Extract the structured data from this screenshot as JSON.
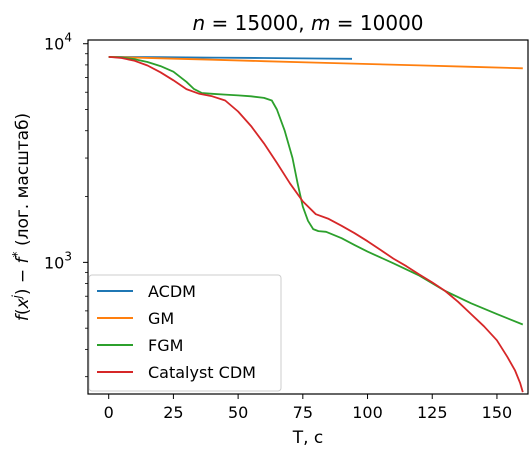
{
  "chart_data": {
    "type": "line",
    "title_prefix_n": "n",
    "title_eq1": " = 15000, ",
    "title_prefix_m": "m",
    "title_eq2": " = 10000",
    "xlabel": "T, c",
    "ylabel": "f(x^j) − f* (лог. масштаб)",
    "x_ticks": [
      0,
      25,
      50,
      75,
      100,
      125,
      150
    ],
    "xlim": [
      -8,
      162
    ],
    "y_scale": "log",
    "ylim": [
      250,
      10400
    ],
    "y_major_ticks": [
      {
        "value": 1000,
        "base": "10",
        "exp": "3"
      },
      {
        "value": 10000,
        "base": "10",
        "exp": "4"
      }
    ],
    "y_minor_ticks": [
      300,
      400,
      500,
      600,
      700,
      800,
      900,
      2000,
      3000,
      4000,
      5000,
      6000,
      7000,
      8000,
      9000
    ],
    "legend_position": "lower-left",
    "series": [
      {
        "name": "ACDM",
        "color": "#1f77b4",
        "points": [
          [
            0,
            8700
          ],
          [
            20,
            8680
          ],
          [
            40,
            8640
          ],
          [
            60,
            8600
          ],
          [
            80,
            8560
          ],
          [
            94,
            8530
          ]
        ]
      },
      {
        "name": "GM",
        "color": "#ff7f0e",
        "points": [
          [
            0,
            8700
          ],
          [
            20,
            8580
          ],
          [
            40,
            8450
          ],
          [
            60,
            8320
          ],
          [
            80,
            8200
          ],
          [
            100,
            8080
          ],
          [
            120,
            7960
          ],
          [
            140,
            7840
          ],
          [
            160,
            7720
          ]
        ]
      },
      {
        "name": "FGM",
        "color": "#2ca02c",
        "points": [
          [
            0,
            8700
          ],
          [
            5,
            8650
          ],
          [
            10,
            8500
          ],
          [
            15,
            8250
          ],
          [
            20,
            7900
          ],
          [
            25,
            7450
          ],
          [
            30,
            6700
          ],
          [
            33,
            6200
          ],
          [
            36,
            5950
          ],
          [
            40,
            5900
          ],
          [
            45,
            5850
          ],
          [
            50,
            5800
          ],
          [
            55,
            5750
          ],
          [
            60,
            5650
          ],
          [
            63,
            5500
          ],
          [
            65,
            5000
          ],
          [
            68,
            4000
          ],
          [
            71,
            3000
          ],
          [
            73,
            2300
          ],
          [
            75,
            1800
          ],
          [
            77,
            1550
          ],
          [
            79,
            1420
          ],
          [
            81,
            1390
          ],
          [
            84,
            1380
          ],
          [
            90,
            1290
          ],
          [
            95,
            1200
          ],
          [
            100,
            1120
          ],
          [
            110,
            990
          ],
          [
            120,
            870
          ],
          [
            130,
            740
          ],
          [
            140,
            650
          ],
          [
            150,
            580
          ],
          [
            160,
            520
          ]
        ]
      },
      {
        "name": "Catalyst CDM",
        "color": "#d62728",
        "points": [
          [
            0,
            8700
          ],
          [
            5,
            8600
          ],
          [
            10,
            8350
          ],
          [
            15,
            7950
          ],
          [
            20,
            7400
          ],
          [
            25,
            6800
          ],
          [
            30,
            6200
          ],
          [
            35,
            5900
          ],
          [
            40,
            5750
          ],
          [
            45,
            5500
          ],
          [
            50,
            4900
          ],
          [
            55,
            4200
          ],
          [
            60,
            3500
          ],
          [
            65,
            2850
          ],
          [
            70,
            2300
          ],
          [
            75,
            1900
          ],
          [
            80,
            1660
          ],
          [
            85,
            1580
          ],
          [
            90,
            1470
          ],
          [
            95,
            1360
          ],
          [
            100,
            1250
          ],
          [
            105,
            1140
          ],
          [
            110,
            1040
          ],
          [
            115,
            960
          ],
          [
            120,
            880
          ],
          [
            125,
            810
          ],
          [
            130,
            740
          ],
          [
            135,
            660
          ],
          [
            140,
            580
          ],
          [
            145,
            510
          ],
          [
            150,
            440
          ],
          [
            154,
            370
          ],
          [
            157,
            320
          ],
          [
            159,
            280
          ],
          [
            160,
            255
          ]
        ]
      }
    ]
  }
}
